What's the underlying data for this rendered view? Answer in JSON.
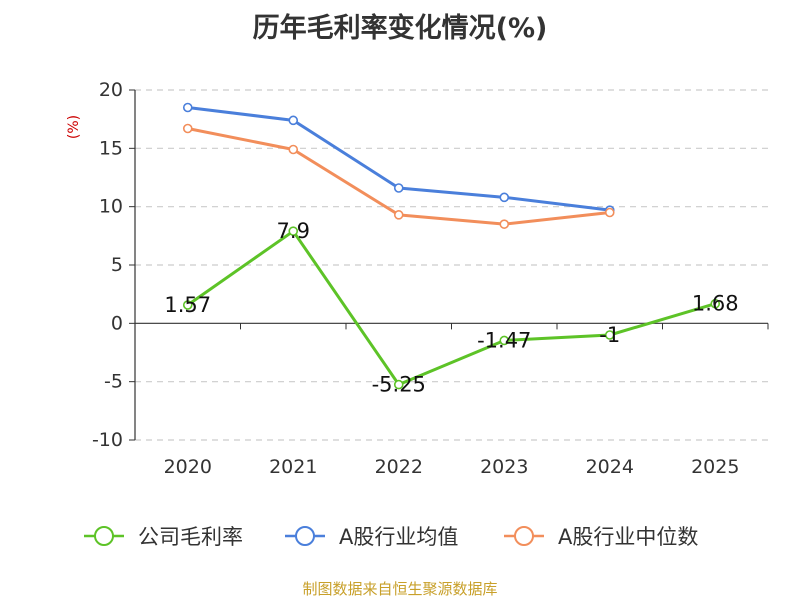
{
  "colors": {
    "title": "#333333",
    "axis": "#333333",
    "grid": "#cccccc",
    "unit": "#cc0000",
    "source": "#c8a02a"
  },
  "source_note": "制图数据来自恒生聚源数据库",
  "chart_data": {
    "type": "line",
    "title": "历年毛利率变化情况(%)",
    "ylabel": "(%)",
    "xlabel": "",
    "categories": [
      "2020",
      "2021",
      "2022",
      "2023",
      "2024",
      "2025"
    ],
    "ylim": [
      -10,
      20
    ],
    "yticks": [
      -10,
      -5,
      0,
      5,
      10,
      15,
      20
    ],
    "grid": true,
    "legend_position": "bottom",
    "series": [
      {
        "name": "公司毛利率",
        "color": "#5dc327",
        "values": [
          1.57,
          7.9,
          -5.25,
          -1.47,
          -1,
          1.68
        ],
        "data_labels": [
          "1.57",
          "7.9",
          "-5.25",
          "-1.47",
          "-1",
          "1.68"
        ]
      },
      {
        "name": "A股行业均值",
        "color": "#4a7fdb",
        "values": [
          18.5,
          17.4,
          11.6,
          10.8,
          9.7,
          null
        ]
      },
      {
        "name": "A股行业中位数",
        "color": "#f28e5b",
        "values": [
          16.7,
          14.9,
          9.3,
          8.5,
          9.5,
          null
        ]
      }
    ]
  }
}
